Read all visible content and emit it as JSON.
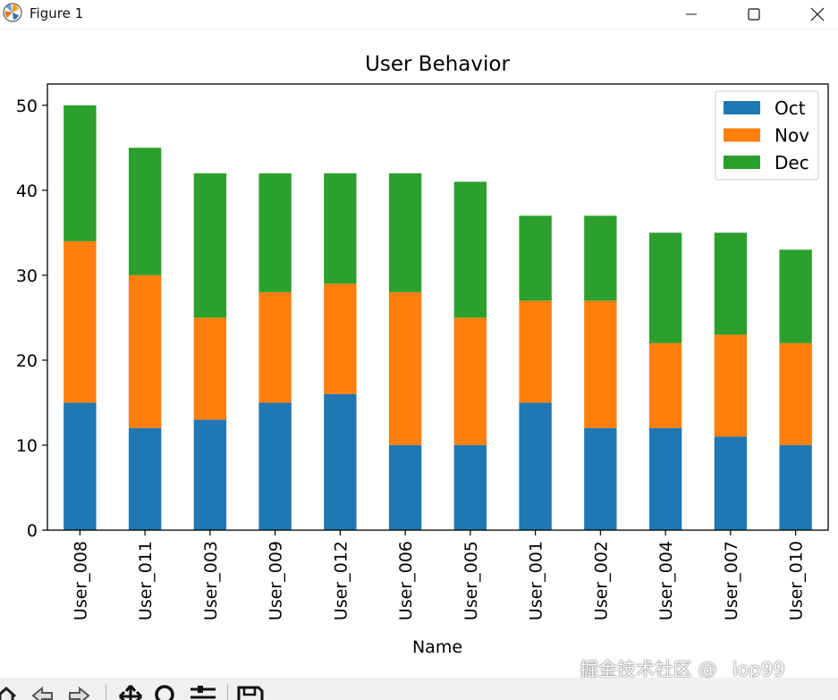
{
  "window": {
    "title": "Figure 1",
    "controls": [
      "minimize",
      "maximize",
      "close"
    ]
  },
  "colors": {
    "oct": "#1f77b4",
    "nov": "#ff7f0e",
    "dec": "#2ca02c"
  },
  "chart_data": {
    "type": "bar",
    "stacked": true,
    "title": "User Behavior",
    "xlabel": "Name",
    "ylabel": "",
    "ylim": [
      0,
      52.5
    ],
    "yticks": [
      0,
      10,
      20,
      30,
      40,
      50
    ],
    "grid": false,
    "legend_position": "top-right",
    "categories": [
      "User_008",
      "User_011",
      "User_003",
      "User_009",
      "User_012",
      "User_006",
      "User_005",
      "User_001",
      "User_002",
      "User_004",
      "User_007",
      "User_010"
    ],
    "series": [
      {
        "name": "Oct",
        "color": "#1f77b4",
        "values": [
          15,
          12,
          13,
          15,
          16,
          10,
          10,
          15,
          12,
          12,
          11,
          10
        ]
      },
      {
        "name": "Nov",
        "color": "#ff7f0e",
        "values": [
          19,
          18,
          12,
          13,
          13,
          18,
          15,
          12,
          15,
          10,
          12,
          12
        ]
      },
      {
        "name": "Dec",
        "color": "#2ca02c",
        "values": [
          16,
          15,
          17,
          14,
          13,
          14,
          16,
          10,
          10,
          13,
          12,
          11
        ]
      }
    ]
  },
  "toolbar": {
    "icons": [
      "home-icon",
      "back-icon",
      "forward-icon",
      "pan-icon",
      "zoom-icon",
      "configure-icon",
      "save-icon"
    ]
  },
  "watermark": "掘金技术社区 @ _iop99"
}
